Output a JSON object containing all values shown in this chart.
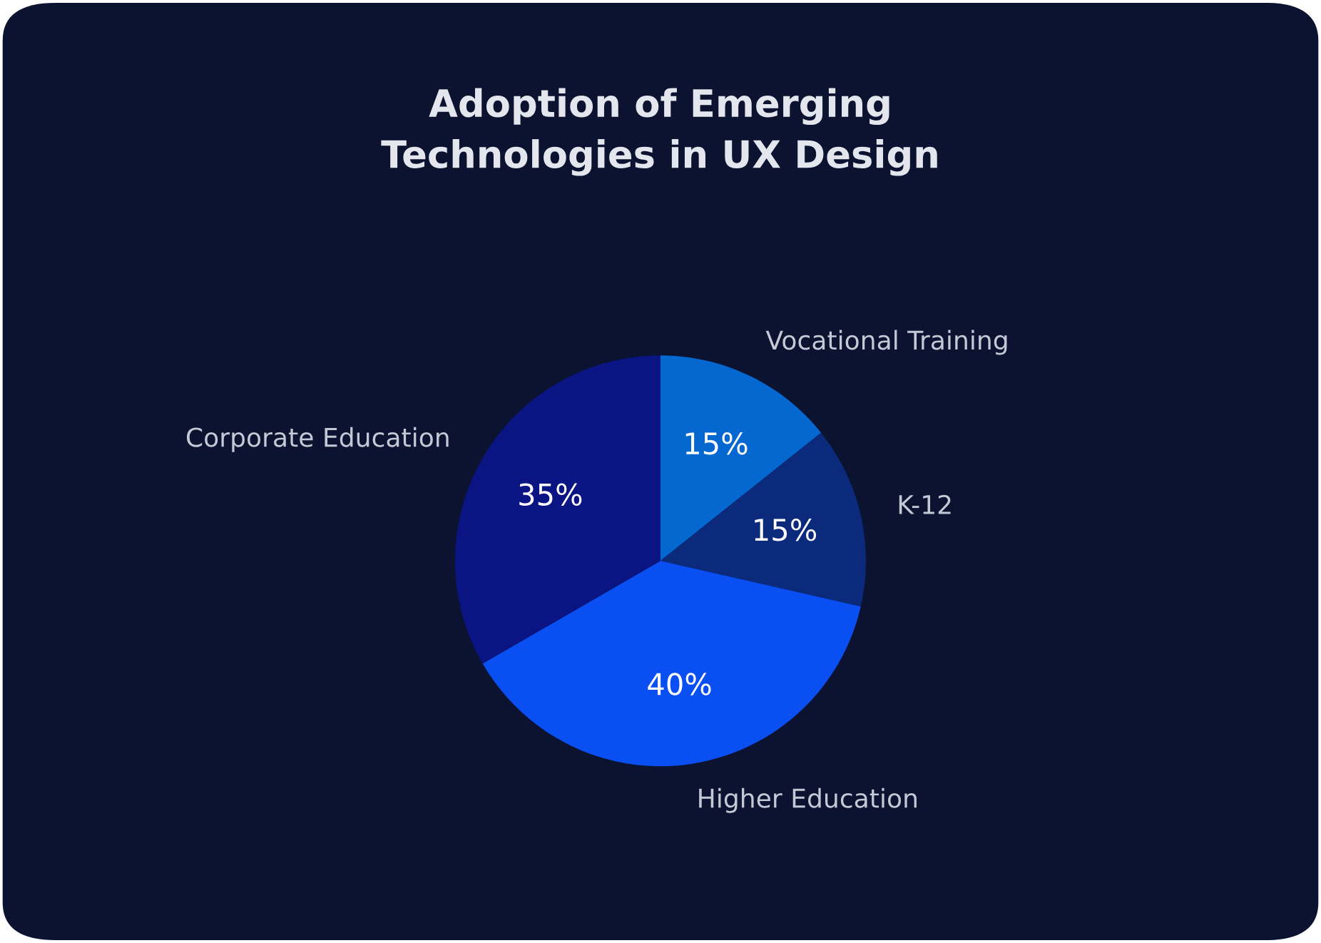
{
  "chart_data": {
    "type": "pie",
    "title": "Adoption of Emerging\nTechnologies in UX Design",
    "categories": [
      "Vocational Training",
      "K-12",
      "Higher Education",
      "Corporate Education"
    ],
    "values": [
      15,
      15,
      40,
      35
    ],
    "value_labels": [
      "15%",
      "15%",
      "40%",
      "35%"
    ],
    "colors": [
      "#0567d0",
      "#0b2a7c",
      "#0a4ff2",
      "#0a1583"
    ],
    "legend": false
  }
}
